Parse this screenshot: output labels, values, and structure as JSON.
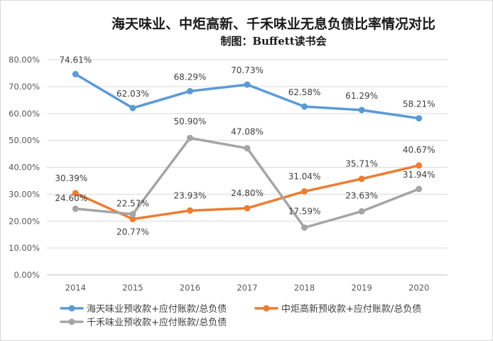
{
  "chart_data": {
    "type": "line",
    "title": "海天味业、中炬高新、千禾味业无息负债比率情况对比",
    "subtitle": "制图：Buffett读书会",
    "categories": [
      "2014",
      "2015",
      "2016",
      "2017",
      "2018",
      "2019",
      "2020"
    ],
    "ylim": [
      0,
      80
    ],
    "yticks": [
      "0.00%",
      "10.00%",
      "20.00%",
      "30.00%",
      "40.00%",
      "50.00%",
      "60.00%",
      "70.00%",
      "80.00%"
    ],
    "grid": true,
    "legend_position": "bottom",
    "series": [
      {
        "name": "海天味业预收款+应付账款/总负债",
        "color": "#5B9BD5",
        "values": [
          74.61,
          62.03,
          68.29,
          70.73,
          62.58,
          61.29,
          58.21
        ],
        "labels": [
          "74.61%",
          "62.03%",
          "68.29%",
          "70.73%",
          "62.58%",
          "61.29%",
          "58.21%"
        ]
      },
      {
        "name": "中炬高新预收款+应付账款/总负债",
        "color": "#ED7D31",
        "values": [
          30.39,
          20.77,
          23.93,
          24.8,
          31.04,
          35.71,
          40.67
        ],
        "labels": [
          "30.39%",
          "20.77%",
          "23.93%",
          "24.80%",
          "31.04%",
          "35.71%",
          "40.67%"
        ]
      },
      {
        "name": "千禾味业预收款+应付账款/总负债",
        "color": "#A5A5A5",
        "values": [
          24.6,
          22.57,
          50.9,
          47.08,
          17.59,
          23.63,
          31.94
        ],
        "labels": [
          "24.60%",
          "22.57%",
          "50.90%",
          "47.08%",
          "17.59%",
          "23.63%",
          "31.94%"
        ]
      }
    ]
  }
}
